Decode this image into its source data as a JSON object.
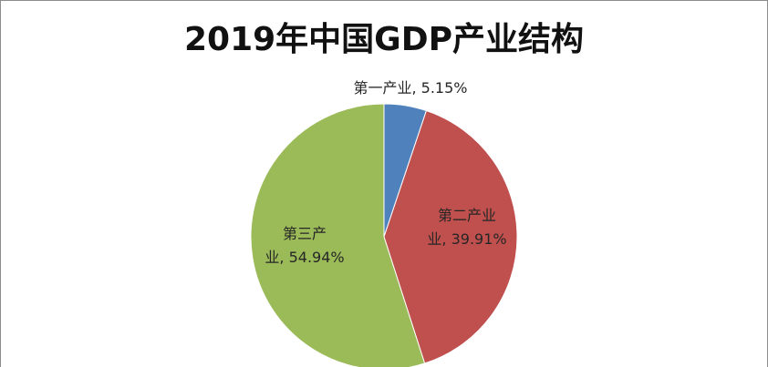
{
  "chart_data": {
    "type": "pie",
    "title": "2019年中国GDP产业结构",
    "slices": [
      {
        "name": "第一产业",
        "value": 5.15,
        "color": "#4f81bd",
        "label_lines": [
          "第一产业, 5.15%"
        ]
      },
      {
        "name": "第二产业",
        "value": 39.91,
        "color": "#c0504d",
        "label_lines": [
          "第二产业",
          "业, 39.91%"
        ]
      },
      {
        "name": "第三产业",
        "value": 54.94,
        "color": "#9bbb59",
        "label_lines": [
          "第三产",
          "业, 54.94%"
        ]
      }
    ],
    "legend": "none"
  }
}
